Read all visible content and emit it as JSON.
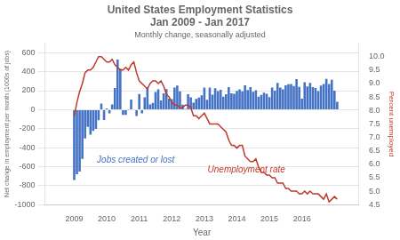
{
  "chart_data": {
    "type": "bar",
    "title": [
      "United States Employment Statistics",
      "Jan 2009 - Jan 2017"
    ],
    "subtitle": "Monthly change, seasonally adjusted",
    "xlabel": "Year",
    "ylabel": "Net change in employment per month (1000s of jobs)",
    "y2label": "Percent unemployed",
    "x": [
      2009,
      2009.08333,
      2009.16666,
      2009.24999,
      2009.33332,
      2009.41665,
      2009.49998,
      2009.58331,
      2009.66664,
      2009.74997,
      2009.8333,
      2009.91663,
      2009.99996,
      2010.08329,
      2010.16662,
      2010.24995,
      2010.33328,
      2010.41661,
      2010.49994,
      2010.58327,
      2010.6666,
      2010.74993,
      2010.83326,
      2010.91659,
      2010.99992,
      2011.08325,
      2011.16658,
      2011.24991,
      2011.33324,
      2011.41657,
      2011.4999,
      2011.58323,
      2011.66656,
      2011.74989,
      2011.83322,
      2011.91655,
      2011.99988,
      2012.08321,
      2012.16654,
      2012.24987,
      2012.3332,
      2012.41653,
      2012.49986,
      2012.58319,
      2012.66652,
      2012.74985,
      2012.83318,
      2012.91651,
      2012.99984,
      2013.08317,
      2013.1665,
      2013.24983,
      2013.33316,
      2013.41649,
      2013.49982,
      2013.58315,
      2013.66648,
      2013.74981,
      2013.83314,
      2013.91647,
      2013.9998,
      2014.08313,
      2014.16646,
      2014.24979,
      2014.33312,
      2014.41645,
      2014.49978,
      2014.58311,
      2014.66644,
      2014.74977,
      2014.8331,
      2014.91643,
      2014.99976,
      2015.08309,
      2015.16642,
      2015.24975,
      2015.33308,
      2015.41641,
      2015.49974,
      2015.58307,
      2015.6664,
      2015.74973,
      2015.83306,
      2015.91639,
      2015.99972,
      2016.08305,
      2016.16638,
      2016.24971,
      2016.33304,
      2016.41637,
      2016.4997,
      2016.58303,
      2016.66636,
      2016.74969,
      2016.83302,
      2016.91635,
      2016.99968,
      2017.08301
    ],
    "series": [
      {
        "type": "bar",
        "color": "#4472c4",
        "values": [
          -741,
          -681,
          -652,
          -519,
          -303,
          -182,
          -263,
          -224,
          -202,
          -111,
          64,
          -109,
          14,
          -39,
          54,
          229,
          527,
          432,
          -56,
          -54,
          -4,
          107,
          -5,
          -66,
          165,
          -39,
          130,
          236,
          54,
          71,
          187,
          213,
          98,
          172,
          217,
          117,
          111,
          232,
          255,
          194,
          53,
          9,
          162,
          131,
          73,
          113,
          127,
          150,
          233,
          104,
          233,
          157,
          225,
          195,
          210,
          138,
          163,
          237,
          172,
          168,
          197,
          215,
          194,
          256,
          206,
          238,
          188,
          204,
          137,
          155,
          178,
          167,
          133,
          232,
          200,
          282,
          232,
          213,
          256,
          267,
          271,
          250,
          321,
          240,
          117,
          290,
          244,
          282,
          238,
          229,
          195,
          254,
          270,
          325,
          271,
          315,
          201,
          82
        ]
      },
      {
        "type": "line",
        "color": "#c0392b",
        "axis": "y2",
        "values": [
          7.8,
          8.3,
          8.7,
          9.0,
          9.4,
          9.5,
          9.5,
          9.6,
          9.8,
          10.0,
          10.0,
          9.9,
          9.8,
          9.8,
          9.9,
          9.7,
          9.6,
          9.5,
          9.5,
          9.6,
          9.5,
          9.7,
          9.8,
          9.4,
          9.1,
          9.0,
          8.9,
          8.8,
          9.0,
          9.1,
          9.1,
          9.0,
          9.1,
          8.9,
          8.6,
          8.5,
          8.3,
          8.2,
          8.2,
          8.1,
          8.1,
          8.2,
          8.2,
          8.1,
          7.8,
          7.8,
          7.7,
          7.8,
          7.9,
          7.7,
          7.5,
          7.5,
          7.5,
          7.5,
          7.4,
          7.3,
          7.2,
          6.9,
          6.7,
          6.7,
          6.6,
          6.7,
          6.7,
          6.3,
          6.2,
          6.1,
          6.1,
          6.2,
          5.9,
          5.7,
          5.7,
          5.6,
          5.6,
          5.5,
          5.5,
          5.3,
          5.3,
          5.3,
          5.1,
          5.1,
          5.0,
          5.0,
          5.0,
          4.9,
          4.9,
          5.0,
          4.9,
          5.0,
          4.9,
          4.9,
          4.9,
          4.8,
          4.7,
          4.9,
          4.6,
          4.7,
          4.8,
          4.7
        ]
      }
    ],
    "xlim": [
      2008.7,
      2017.15
    ],
    "xticks": [
      2009,
      2010,
      2011,
      2012,
      2013,
      2014,
      2015,
      2016
    ],
    "ylim": [
      -1000,
      700
    ],
    "yticks": [
      -1000,
      -800,
      -600,
      -400,
      -200,
      0,
      200,
      400,
      600
    ],
    "y2lim": [
      4.5,
      10.5
    ],
    "y2ticks": [
      4.5,
      {
        "value": 5,
        "label": "5.0"
      },
      5.5,
      {
        "value": 6,
        "label": "6.0"
      },
      6.5,
      {
        "value": 7,
        "label": "7.0"
      },
      7.5,
      {
        "value": 8,
        "label": "8.0"
      },
      8.5,
      {
        "value": 9,
        "label": "9.0"
      },
      9.5,
      {
        "value": 10,
        "label": "10.0"
      }
    ],
    "grid": true,
    "annotations": [
      {
        "text": "Jobs created or lost",
        "x": 2009.7,
        "y": -560,
        "color": "#4472c4"
      },
      {
        "text": "Unemployment rate",
        "x": 2013.1,
        "y": -660,
        "color": "#c0392b"
      }
    ]
  }
}
